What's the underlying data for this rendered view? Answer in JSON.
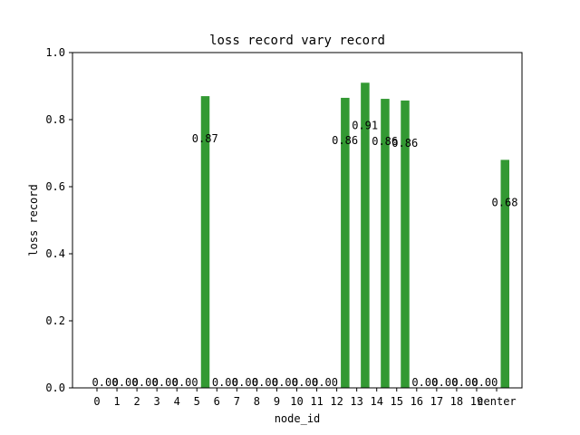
{
  "chart_data": {
    "type": "bar",
    "title": "loss record vary record",
    "xlabel": "node_id",
    "ylabel": "loss record",
    "ylim": [
      0,
      1.0
    ],
    "yticks": [
      "0.0",
      "0.2",
      "0.4",
      "0.6",
      "0.8",
      "1.0"
    ],
    "grid": false,
    "categories": [
      "0",
      "1",
      "2",
      "3",
      "4",
      "5",
      "6",
      "7",
      "8",
      "9",
      "10",
      "11",
      "12",
      "13",
      "14",
      "15",
      "16",
      "17",
      "18",
      "19",
      "center"
    ],
    "values": [
      0,
      0,
      0,
      0,
      0,
      0.87,
      0,
      0,
      0,
      0,
      0,
      0,
      0.865,
      0.91,
      0.862,
      0.857,
      0,
      0,
      0,
      0,
      0.68
    ],
    "value_labels": [
      "0.00",
      "0.00",
      "0.00",
      "0.00",
      "0.00",
      "0.87",
      "0.00",
      "0.00",
      "0.00",
      "0.00",
      "0.00",
      "0.00",
      "0.86",
      "0.91",
      "0.86",
      "0.86",
      "0.00",
      "0.00",
      "0.00",
      "0.00",
      "0.68"
    ],
    "bar_color": "#339933"
  }
}
